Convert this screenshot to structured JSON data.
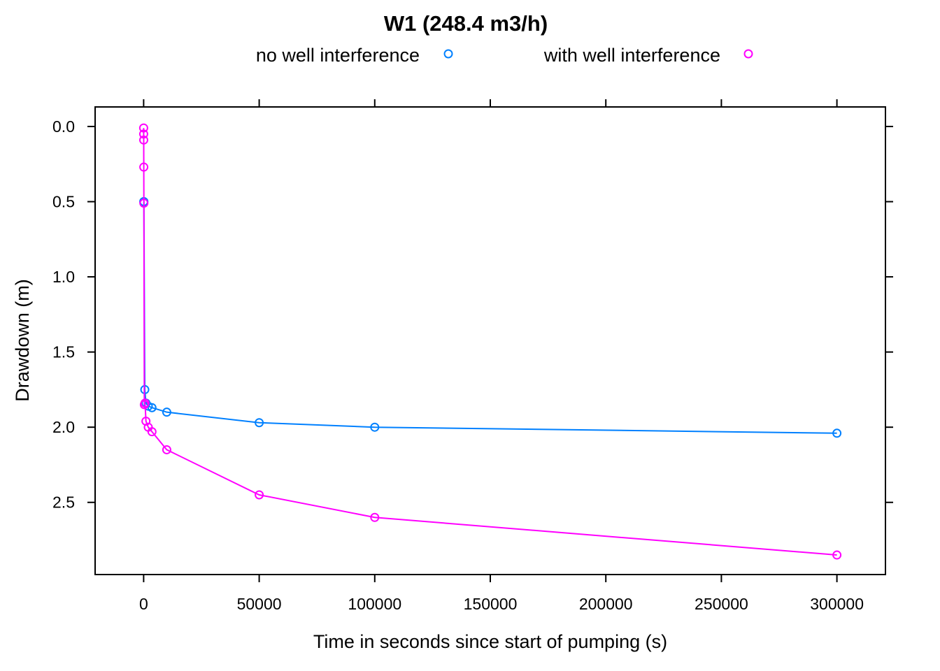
{
  "chart_data": {
    "type": "line",
    "title": "W1 (248.4 m3/h)",
    "xlabel": "Time in seconds since start of pumping (s)",
    "ylabel": "Drawdown (m)",
    "xlim": [
      -21000,
      321000
    ],
    "ylim": [
      -0.13,
      2.98
    ],
    "y_reversed": true,
    "grid": false,
    "legend_position": "top",
    "x_ticks": [
      0,
      50000,
      100000,
      150000,
      200000,
      250000,
      300000
    ],
    "y_ticks": [
      0.0,
      0.5,
      1.0,
      1.5,
      2.0,
      2.5
    ],
    "x_tick_labels": [
      "0",
      "50000",
      "100000",
      "150000",
      "200000",
      "250000",
      "300000"
    ],
    "y_tick_labels": [
      "0.0",
      "0.5",
      "1.0",
      "1.5",
      "2.0",
      "2.5"
    ],
    "series": [
      {
        "name": "no well interference",
        "color": "#0080ff",
        "x": [
          60,
          100,
          500,
          1000,
          2000,
          3600,
          10000,
          50000,
          100000,
          300000
        ],
        "y": [
          0.5,
          0.5,
          1.75,
          1.84,
          1.86,
          1.87,
          1.9,
          1.97,
          2.0,
          2.04
        ]
      },
      {
        "name": "with well interference",
        "color": "#ff00ff",
        "x": [
          0,
          10,
          30,
          60,
          100,
          300,
          600,
          1000,
          2000,
          3600,
          10000,
          50000,
          100000,
          300000
        ],
        "y": [
          0.01,
          0.05,
          0.09,
          0.27,
          0.51,
          1.85,
          1.84,
          1.96,
          2.0,
          2.03,
          2.15,
          2.45,
          2.6,
          2.85
        ]
      }
    ]
  }
}
